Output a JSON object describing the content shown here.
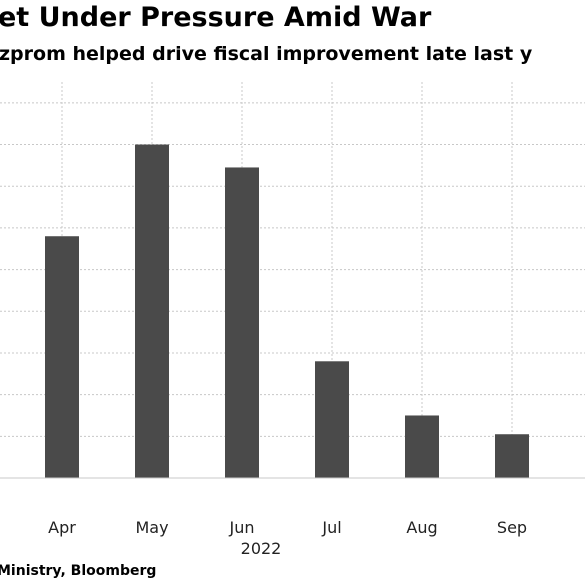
{
  "header": {
    "title": "et Under Pressure Amid War",
    "subtitle": "zprom helped drive fiscal improvement late last y"
  },
  "footer": {
    "source": "Ministry, Bloomberg"
  },
  "chart_data": {
    "type": "bar",
    "title": "et Under Pressure Amid War",
    "subtitle": "zprom helped drive fiscal improvement late last y",
    "categories": [
      "Apr",
      "May",
      "Jun",
      "Jul",
      "Aug",
      "Sep"
    ],
    "values": [
      5.8,
      8.0,
      7.45,
      2.8,
      1.5,
      1.05
    ],
    "ylim": [
      0,
      9.5
    ],
    "gridlines_y": [
      1,
      2,
      3,
      4,
      5,
      6,
      7,
      8,
      9
    ],
    "year_label": "2022",
    "xlabel": "",
    "ylabel": "",
    "grid": true,
    "bar_color": "#4a4a4a",
    "grid_color": "#c8c8c8"
  }
}
